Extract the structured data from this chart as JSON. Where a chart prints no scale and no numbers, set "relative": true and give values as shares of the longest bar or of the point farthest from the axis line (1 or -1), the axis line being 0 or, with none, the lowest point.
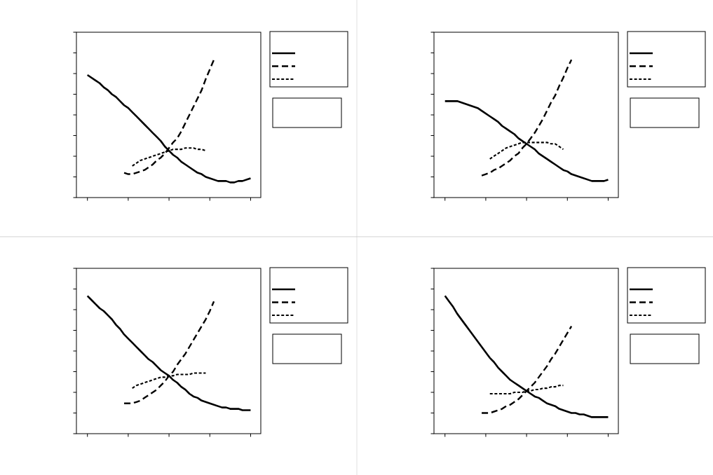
{
  "chart_data": [
    {
      "type": "line",
      "relative": true,
      "tick_labels": false,
      "categories": [
        null,
        null,
        null,
        null,
        null,
        null,
        null,
        null,
        null,
        null,
        null,
        null,
        null,
        null,
        null,
        null,
        null,
        null,
        null,
        null,
        null,
        null,
        null,
        null,
        null,
        null,
        null,
        null,
        null,
        null,
        null,
        null,
        null,
        null,
        null,
        null,
        null,
        null,
        null,
        null,
        null
      ],
      "series": [
        {
          "color": "#000000",
          "line_style": "solid",
          "values": [
            0.89,
            0.87,
            0.85,
            0.83,
            0.8,
            0.78,
            0.75,
            0.73,
            0.7,
            0.67,
            0.65,
            0.62,
            0.59,
            0.56,
            0.53,
            0.5,
            0.47,
            0.44,
            0.41,
            0.37,
            0.34,
            0.31,
            0.29,
            0.26,
            0.24,
            0.22,
            0.2,
            0.18,
            0.17,
            0.15,
            0.14,
            0.13,
            0.12,
            0.12,
            0.12,
            0.11,
            0.11,
            0.12,
            0.12,
            0.13,
            0.14
          ]
        },
        {
          "color": "#000000",
          "line_style": "dashed",
          "values": [
            null,
            null,
            null,
            null,
            null,
            null,
            null,
            null,
            null,
            0.18,
            0.17,
            0.17,
            0.18,
            0.19,
            0.2,
            0.22,
            0.24,
            0.27,
            0.29,
            0.32,
            0.36,
            0.4,
            0.43,
            0.48,
            0.54,
            0.6,
            0.66,
            0.72,
            0.78,
            0.86,
            0.93,
            1,
            null,
            null,
            null,
            null,
            null,
            null,
            null,
            null,
            null
          ]
        },
        {
          "color": "#000000",
          "line_style": "dotted",
          "values": [
            null,
            null,
            null,
            null,
            null,
            null,
            null,
            null,
            null,
            null,
            null,
            0.23,
            0.25,
            0.27,
            0.28,
            0.29,
            0.3,
            0.31,
            0.32,
            0.33,
            0.34,
            0.35,
            0.35,
            0.35,
            0.36,
            0.36,
            0.36,
            0.35,
            0.35,
            0.34,
            null,
            null,
            null,
            null,
            null,
            null,
            null,
            null,
            null,
            null,
            null
          ]
        }
      ]
    },
    {
      "type": "line",
      "relative": true,
      "tick_labels": false,
      "categories": [
        null,
        null,
        null,
        null,
        null,
        null,
        null,
        null,
        null,
        null,
        null,
        null,
        null,
        null,
        null,
        null,
        null,
        null,
        null,
        null,
        null,
        null,
        null,
        null,
        null,
        null,
        null,
        null,
        null,
        null,
        null,
        null,
        null,
        null,
        null,
        null,
        null,
        null,
        null,
        null,
        null
      ],
      "series": [
        {
          "color": "#000000",
          "line_style": "solid",
          "values": [
            0.7,
            0.7,
            0.7,
            0.7,
            0.69,
            0.68,
            0.67,
            0.66,
            0.65,
            0.63,
            0.61,
            0.59,
            0.57,
            0.55,
            0.52,
            0.5,
            0.48,
            0.46,
            0.43,
            0.41,
            0.39,
            0.37,
            0.35,
            0.32,
            0.3,
            0.28,
            0.26,
            0.24,
            0.22,
            0.2,
            0.19,
            0.17,
            0.16,
            0.15,
            0.14,
            0.13,
            0.12,
            0.12,
            0.12,
            0.12,
            0.13
          ]
        },
        {
          "color": "#000000",
          "line_style": "dashed",
          "values": [
            null,
            null,
            null,
            null,
            null,
            null,
            null,
            null,
            null,
            0.16,
            0.17,
            0.18,
            0.2,
            0.21,
            0.23,
            0.25,
            0.27,
            0.3,
            0.32,
            0.36,
            0.39,
            0.43,
            0.47,
            0.52,
            0.57,
            0.63,
            0.69,
            0.74,
            0.81,
            0.87,
            0.94,
            1,
            null,
            null,
            null,
            null,
            null,
            null,
            null,
            null,
            null
          ]
        },
        {
          "color": "#000000",
          "line_style": "dotted",
          "values": [
            null,
            null,
            null,
            null,
            null,
            null,
            null,
            null,
            null,
            null,
            null,
            0.28,
            0.3,
            0.32,
            0.34,
            0.36,
            0.37,
            0.38,
            0.39,
            0.4,
            0.4,
            0.4,
            0.4,
            0.4,
            0.4,
            0.4,
            0.39,
            0.39,
            0.37,
            0.35,
            null,
            null,
            null,
            null,
            null,
            null,
            null,
            null,
            null,
            null,
            null
          ]
        }
      ]
    },
    {
      "type": "line",
      "relative": true,
      "tick_labels": false,
      "categories": [
        null,
        null,
        null,
        null,
        null,
        null,
        null,
        null,
        null,
        null,
        null,
        null,
        null,
        null,
        null,
        null,
        null,
        null,
        null,
        null,
        null,
        null,
        null,
        null,
        null,
        null,
        null,
        null,
        null,
        null,
        null,
        null,
        null,
        null,
        null,
        null,
        null,
        null,
        null,
        null,
        null
      ],
      "series": [
        {
          "color": "#000000",
          "line_style": "solid",
          "values": [
            1,
            0.97,
            0.94,
            0.91,
            0.89,
            0.86,
            0.83,
            0.79,
            0.76,
            0.72,
            0.69,
            0.66,
            0.63,
            0.6,
            0.57,
            0.54,
            0.52,
            0.49,
            0.46,
            0.44,
            0.42,
            0.39,
            0.37,
            0.34,
            0.32,
            0.29,
            0.27,
            0.26,
            0.24,
            0.23,
            0.22,
            0.21,
            0.2,
            0.19,
            0.19,
            0.18,
            0.18,
            0.18,
            0.17,
            0.17,
            0.17
          ]
        },
        {
          "color": "#000000",
          "line_style": "dashed",
          "values": [
            null,
            null,
            null,
            null,
            null,
            null,
            null,
            null,
            null,
            0.22,
            0.22,
            0.22,
            0.23,
            0.24,
            0.26,
            0.28,
            0.3,
            0.32,
            0.35,
            0.38,
            0.42,
            0.45,
            0.5,
            0.54,
            0.58,
            0.63,
            0.68,
            0.73,
            0.78,
            0.83,
            0.89,
            0.96,
            null,
            null,
            null,
            null,
            null,
            null,
            null,
            null,
            null
          ]
        },
        {
          "color": "#000000",
          "line_style": "dotted",
          "values": [
            null,
            null,
            null,
            null,
            null,
            null,
            null,
            null,
            null,
            null,
            null,
            0.33,
            0.35,
            0.36,
            0.37,
            0.38,
            0.39,
            0.4,
            0.41,
            0.41,
            0.42,
            0.42,
            0.43,
            0.43,
            0.43,
            0.43,
            0.44,
            0.44,
            0.44,
            0.44,
            null,
            null,
            null,
            null,
            null,
            null,
            null,
            null,
            null,
            null,
            null
          ]
        }
      ]
    },
    {
      "type": "line",
      "relative": true,
      "tick_labels": false,
      "categories": [
        null,
        null,
        null,
        null,
        null,
        null,
        null,
        null,
        null,
        null,
        null,
        null,
        null,
        null,
        null,
        null,
        null,
        null,
        null,
        null,
        null,
        null,
        null,
        null,
        null,
        null,
        null,
        null,
        null,
        null,
        null,
        null,
        null,
        null,
        null,
        null,
        null,
        null,
        null,
        null,
        null
      ],
      "series": [
        {
          "color": "#000000",
          "line_style": "solid",
          "values": [
            1,
            0.96,
            0.92,
            0.87,
            0.83,
            0.79,
            0.75,
            0.71,
            0.67,
            0.63,
            0.59,
            0.55,
            0.52,
            0.48,
            0.45,
            0.42,
            0.39,
            0.37,
            0.35,
            0.33,
            0.31,
            0.29,
            0.27,
            0.26,
            0.24,
            0.22,
            0.21,
            0.2,
            0.18,
            0.17,
            0.16,
            0.15,
            0.15,
            0.14,
            0.14,
            0.13,
            0.12,
            0.12,
            0.12,
            0.12,
            0.12
          ]
        },
        {
          "color": "#000000",
          "line_style": "dashed",
          "values": [
            null,
            null,
            null,
            null,
            null,
            null,
            null,
            null,
            null,
            0.15,
            0.15,
            0.15,
            0.16,
            0.17,
            0.18,
            0.2,
            0.21,
            0.23,
            0.25,
            0.28,
            0.31,
            0.34,
            0.37,
            0.41,
            0.45,
            0.49,
            0.54,
            0.58,
            0.63,
            0.68,
            0.73,
            0.78,
            null,
            null,
            null,
            null,
            null,
            null,
            null,
            null,
            null
          ]
        },
        {
          "color": "#000000",
          "line_style": "dotted",
          "values": [
            null,
            null,
            null,
            null,
            null,
            null,
            null,
            null,
            null,
            null,
            null,
            0.29,
            0.29,
            0.29,
            0.29,
            0.29,
            0.29,
            0.3,
            0.3,
            0.3,
            0.31,
            0.31,
            0.32,
            0.32,
            0.33,
            0.33,
            0.34,
            0.34,
            0.35,
            0.35,
            null,
            null,
            null,
            null,
            null,
            null,
            null,
            null,
            null,
            null,
            null
          ]
        }
      ]
    }
  ]
}
